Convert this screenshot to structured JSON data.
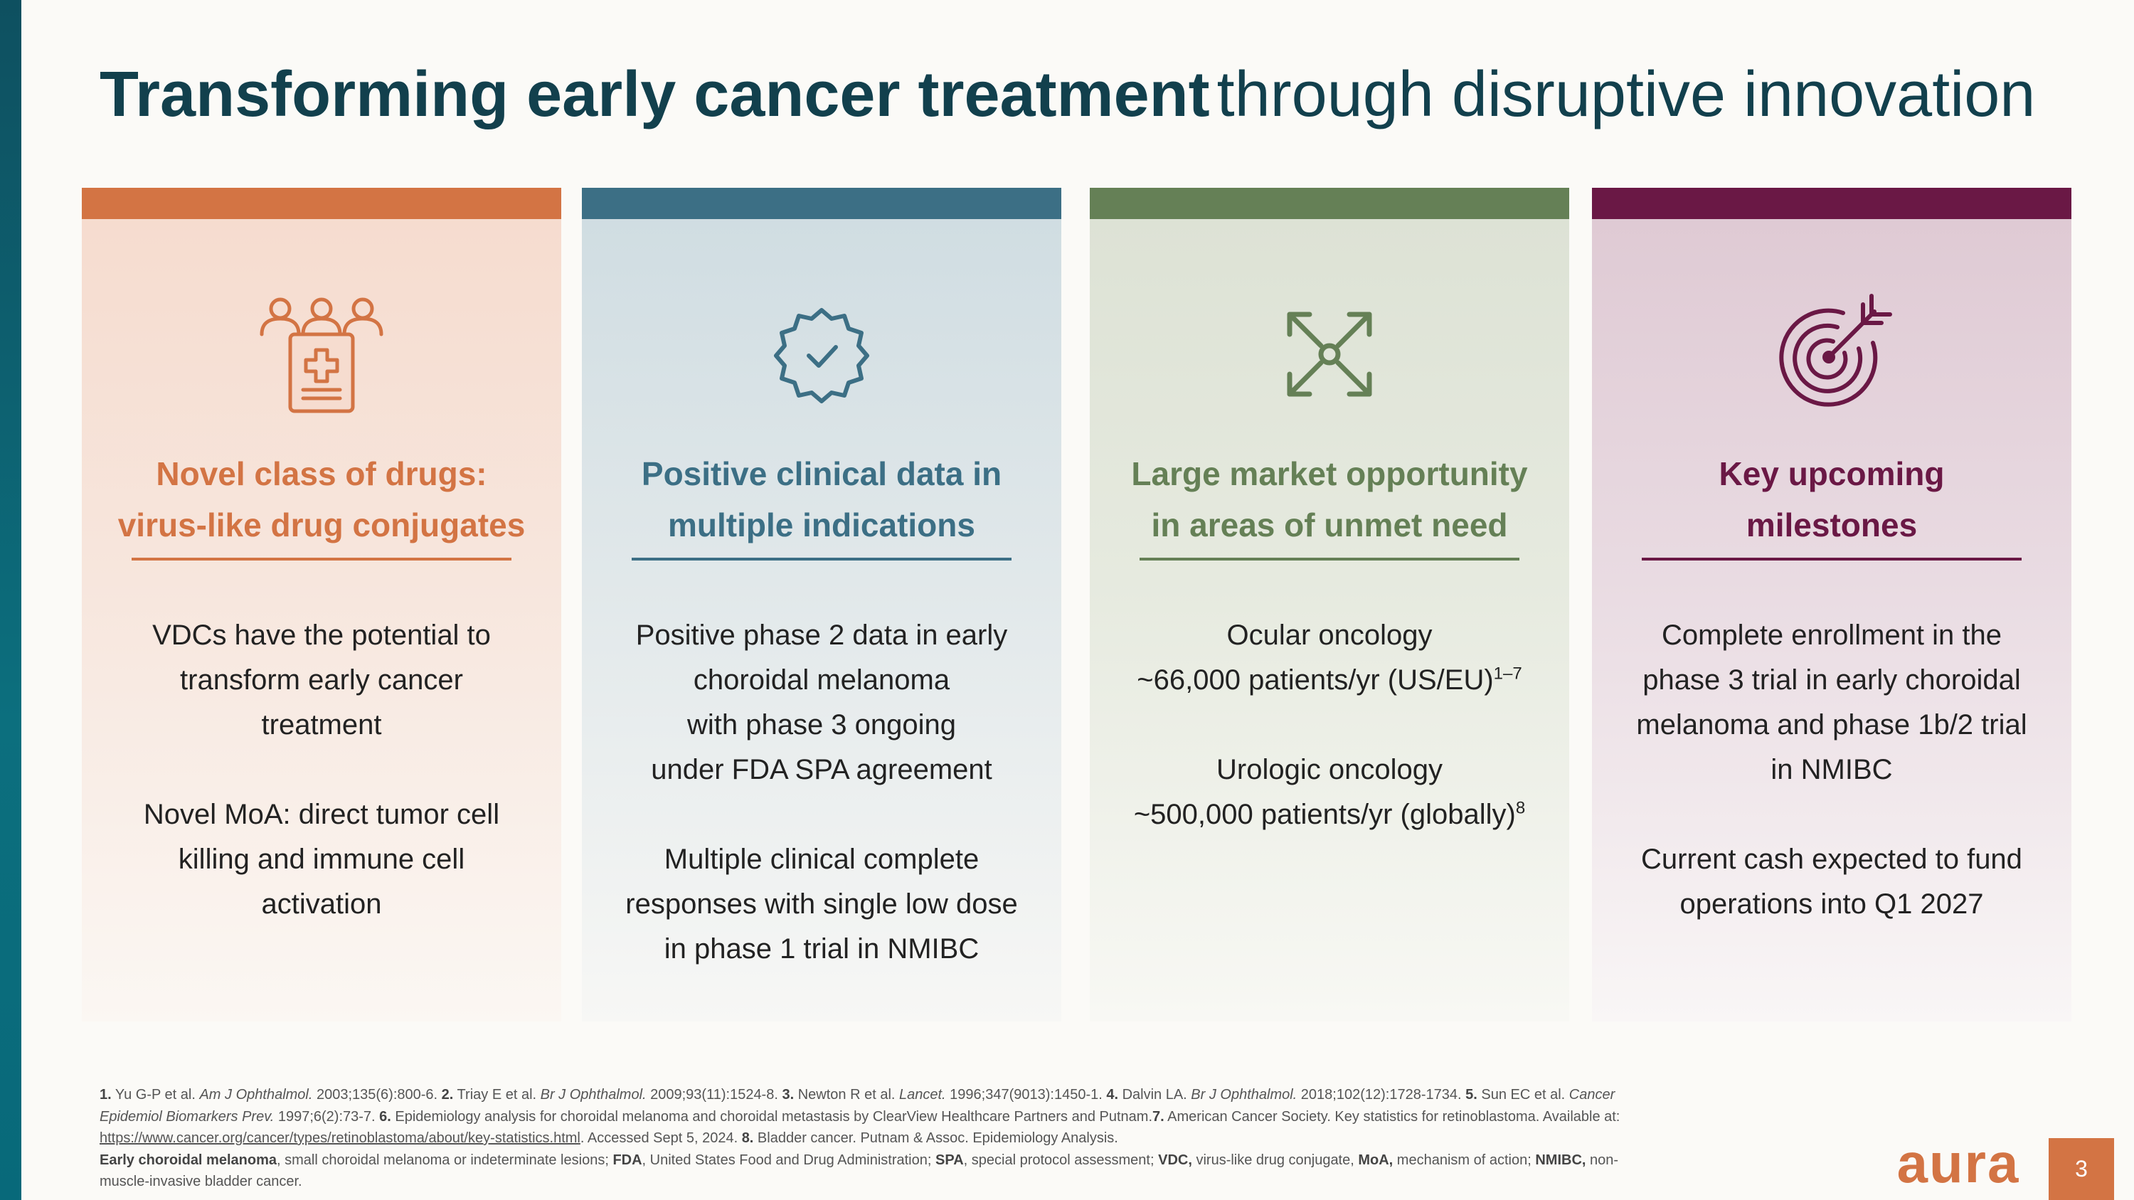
{
  "title": {
    "bold": "Transforming early cancer treatment",
    "light": "through disruptive innovation"
  },
  "colors": {
    "orange": "#d37444",
    "blue": "#3c6f85",
    "green": "#658056",
    "plum": "#6a1845",
    "title": "#12404d"
  },
  "cards": [
    {
      "icon": "clinical-trial-patients-icon",
      "heading": [
        "Novel class of drugs:",
        "virus-like drug conjugates"
      ],
      "lines": [
        "VDCs have the potential to",
        "transform early cancer",
        "treatment",
        "",
        "Novel MoA: direct tumor cell",
        "killing and immune cell",
        "activation"
      ]
    },
    {
      "icon": "verified-badge-icon",
      "heading": [
        "Positive clinical data in",
        "multiple indications"
      ],
      "lines": [
        "Positive phase 2 data in early",
        "choroidal melanoma",
        "with phase 3 ongoing",
        "under FDA SPA agreement",
        "",
        "Multiple clinical complete",
        "responses with single low dose",
        "in phase 1 trial in NMIBC"
      ]
    },
    {
      "icon": "expand-arrows-icon",
      "heading": [
        "Large market opportunity",
        "in areas of unmet need"
      ],
      "lines": [
        {
          "text": "Ocular oncology"
        },
        {
          "text": "~66,000 patients/yr (US/EU)",
          "sup": "1–7"
        },
        {
          "text": ""
        },
        {
          "text": "Urologic oncology"
        },
        {
          "text": "~500,000 patients/yr (globally)",
          "sup": "8"
        }
      ]
    },
    {
      "icon": "target-dart-icon",
      "heading": [
        "Key upcoming",
        "milestones"
      ],
      "lines": [
        "Complete enrollment in the",
        "phase 3 trial in early choroidal",
        "melanoma and phase 1b/2 trial",
        "in NMIBC",
        "",
        "Current cash expected to fund",
        "operations into Q1 2027"
      ]
    }
  ],
  "footnotes": {
    "l1_n1": "1.",
    "l1_t1": " Yu G-P et al. ",
    "l1_j1": "Am J Ophthalmol.",
    "l1_c1": " 2003;135(6):800-6. ",
    "l1_n2": "2.",
    "l1_t2": " Triay E et al. ",
    "l1_j2": "Br J Ophthalmol.",
    "l1_c2": " 2009;93(11):1524-8. ",
    "l1_n3": "3.",
    "l1_t3": " Newton R et al. ",
    "l1_j3": "Lancet.",
    "l1_c3": " 1996;347(9013):1450-1. ",
    "l1_n4": "4.",
    "l1_t4": " Dalvin LA. ",
    "l1_j4": "Br J Ophthalmol.",
    "l1_c4": " 2018;102(12):1728-1734. ",
    "l1_n5": "5.",
    "l1_t5": " Sun EC et al. ",
    "l1_j5": "Cancer",
    "l2_j5": "Epidemiol Biomarkers Prev.",
    "l2_c5": " 1997;6(2):73-7. ",
    "l2_n6": "6.",
    "l2_t6": " Epidemiology analysis for choroidal melanoma and choroidal metastasis by ClearView Healthcare Partners and Putnam.",
    "l2_n7": "7.",
    "l2_t7": " American Cancer Society. Key statistics for retinoblastoma. Available at:",
    "l3_url": "https://www.cancer.org/cancer/types/retinoblastoma/about/key-statistics.html",
    "l3_acc": ". Accessed Sept 5, 2024. ",
    "l3_n8": "8.",
    "l3_t8": " Bladder cancer. Putnam & Assoc. Epidemiology Analysis.",
    "l4_b1": "Early choroidal melanoma",
    "l4_t1": ", small choroidal melanoma or indeterminate lesions; ",
    "l4_b2": "FDA",
    "l4_t2": ", United States Food and Drug Administration; ",
    "l4_b3": "SPA",
    "l4_t3": ", special protocol assessment; ",
    "l4_b4": "VDC,",
    "l4_t4": " virus-like drug conjugate, ",
    "l4_b5": "MoA,",
    "l4_t5": " mechanism of action; ",
    "l4_b6": "NMIBC,",
    "l4_t6": " non-",
    "l5_t1": "muscle-invasive bladder cancer."
  },
  "logo": "aura",
  "page_number": "3"
}
